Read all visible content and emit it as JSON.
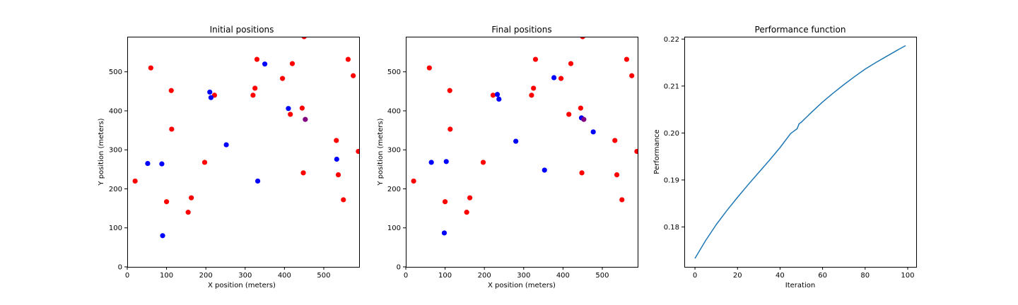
{
  "figure": {
    "background": "#ffffff"
  },
  "chart_data": [
    {
      "type": "scatter",
      "title": "Initial positions",
      "xlabel": "X position (meters)",
      "ylabel": "Y position (meters)",
      "xlim": [
        0,
        590
      ],
      "ylim": [
        0,
        590
      ],
      "xticks": [
        0,
        100,
        200,
        300,
        400,
        500
      ],
      "yticks": [
        0,
        100,
        200,
        300,
        400,
        500
      ],
      "grid": false,
      "series": [
        {
          "color": "#ff0000",
          "points": [
            [
              20,
              220
            ],
            [
              60,
              510
            ],
            [
              100,
              167
            ],
            [
              112,
              452
            ],
            [
              113,
              353
            ],
            [
              155,
              140
            ],
            [
              163,
              177
            ],
            [
              197,
              268
            ],
            [
              222,
              440
            ],
            [
              320,
              440
            ],
            [
              325,
              458
            ],
            [
              330,
              532
            ],
            [
              395,
              483
            ],
            [
              415,
              391
            ],
            [
              420,
              521
            ],
            [
              445,
              407
            ],
            [
              448,
              241
            ],
            [
              450,
              590
            ],
            [
              532,
              324
            ],
            [
              537,
              236
            ],
            [
              550,
              172
            ],
            [
              562,
              532
            ],
            [
              575,
              490
            ],
            [
              588,
              296
            ]
          ]
        },
        {
          "color": "#0000ff",
          "points": [
            [
              52,
              265
            ],
            [
              88,
              264
            ],
            [
              90,
              80
            ],
            [
              210,
              448
            ],
            [
              213,
              434
            ],
            [
              252,
              313
            ],
            [
              332,
              220
            ],
            [
              350,
              520
            ],
            [
              410,
              406
            ],
            [
              533,
              276
            ]
          ]
        },
        {
          "color": "#800080",
          "points": [
            [
              453,
              378
            ]
          ]
        }
      ]
    },
    {
      "type": "scatter",
      "title": "Final positions",
      "xlabel": "X position (meters)",
      "ylabel": "Y position (meters)",
      "xlim": [
        0,
        590
      ],
      "ylim": [
        0,
        590
      ],
      "xticks": [
        0,
        100,
        200,
        300,
        400,
        500
      ],
      "yticks": [
        0,
        100,
        200,
        300,
        400,
        500
      ],
      "grid": false,
      "series": [
        {
          "color": "#ff0000",
          "points": [
            [
              20,
              220
            ],
            [
              60,
              510
            ],
            [
              100,
              167
            ],
            [
              112,
              452
            ],
            [
              113,
              353
            ],
            [
              155,
              140
            ],
            [
              163,
              177
            ],
            [
              197,
              268
            ],
            [
              222,
              440
            ],
            [
              320,
              440
            ],
            [
              325,
              458
            ],
            [
              330,
              532
            ],
            [
              395,
              483
            ],
            [
              415,
              391
            ],
            [
              420,
              521
            ],
            [
              445,
              407
            ],
            [
              448,
              241
            ],
            [
              450,
              590
            ],
            [
              532,
              324
            ],
            [
              537,
              236
            ],
            [
              550,
              172
            ],
            [
              562,
              532
            ],
            [
              575,
              490
            ],
            [
              588,
              296
            ]
          ]
        },
        {
          "color": "#0000ff",
          "points": [
            [
              65,
              268
            ],
            [
              98,
              87
            ],
            [
              103,
              270
            ],
            [
              233,
              442
            ],
            [
              237,
              430
            ],
            [
              280,
              322
            ],
            [
              353,
              248
            ],
            [
              377,
              485
            ],
            [
              447,
              382
            ],
            [
              477,
              346
            ]
          ]
        },
        {
          "color": "#800080",
          "points": [
            [
              453,
              378
            ]
          ]
        }
      ]
    },
    {
      "type": "line",
      "title": "Performance function",
      "xlabel": "Iteration",
      "ylabel": "Performance",
      "xlim": [
        -5,
        104
      ],
      "ylim": [
        0.1715,
        0.2205
      ],
      "xticks": [
        0,
        20,
        40,
        60,
        80,
        100
      ],
      "yticks": [
        0.18,
        0.19,
        0.2,
        0.21,
        0.22
      ],
      "yticklabels": [
        "0.18",
        "0.19",
        "0.20",
        "0.21",
        "0.22"
      ],
      "grid": false,
      "series": [
        {
          "color": "#1f77b4",
          "x": [
            0,
            5,
            10,
            15,
            20,
            25,
            30,
            35,
            40,
            45,
            48,
            49,
            50,
            55,
            60,
            65,
            70,
            75,
            80,
            85,
            90,
            95,
            99
          ],
          "y": [
            0.1733,
            0.1771,
            0.1805,
            0.1835,
            0.1863,
            0.189,
            0.1916,
            0.1942,
            0.1969,
            0.1999,
            0.2009,
            0.202,
            0.2023,
            0.2045,
            0.2066,
            0.2085,
            0.2103,
            0.212,
            0.2136,
            0.215,
            0.2163,
            0.2176,
            0.2186
          ]
        }
      ]
    }
  ]
}
